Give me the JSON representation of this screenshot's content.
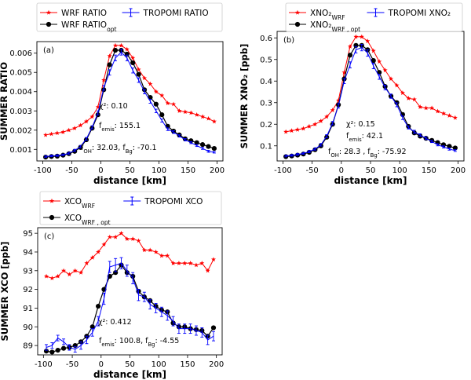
{
  "chart_data": [
    {
      "type": "line",
      "panel_label": "(a)",
      "xlabel": "distance [km]",
      "ylabel": "SUMMER RATIO",
      "xlim": [
        -110,
        210
      ],
      "ylim": [
        0.0004,
        0.0066
      ],
      "xticks": [
        -100,
        -50,
        0,
        50,
        100,
        150,
        200
      ],
      "yticks": [
        0.001,
        0.002,
        0.003,
        0.004,
        0.005,
        0.006
      ],
      "ytick_labels": [
        "0.001",
        "0.002",
        "0.003",
        "0.004",
        "0.005",
        "0.006"
      ],
      "legend": {
        "layout": "3-entry",
        "location": "above plot",
        "entries": [
          {
            "series": 0,
            "label": "WRF RATIO",
            "sub": ""
          },
          {
            "series": 1,
            "label": "WRF RATIO",
            "sub": "opt"
          },
          {
            "series": 2,
            "label": "TROPOMI RATIO",
            "sub": ""
          }
        ]
      },
      "annotations": [
        {
          "text": "χ²: 0.10",
          "pos": "chi"
        },
        {
          "text": "f_emis: 155.1",
          "pos": "femis"
        },
        {
          "text": "f_OH: 32.03, f_Bg: -70.1",
          "pos": "foh"
        }
      ],
      "x": [
        -95,
        -85,
        -75,
        -65,
        -55,
        -45,
        -35,
        -25,
        -15,
        -5,
        5,
        15,
        25,
        35,
        45,
        55,
        65,
        75,
        85,
        95,
        105,
        115,
        125,
        135,
        145,
        155,
        165,
        175,
        185,
        195
      ],
      "series": [
        {
          "name": "WRF RATIO",
          "color": "#ff0000",
          "marker": "star",
          "values": [
            0.00175,
            0.0018,
            0.00185,
            0.0019,
            0.002,
            0.0021,
            0.00225,
            0.00245,
            0.0027,
            0.0032,
            0.0046,
            0.00585,
            0.0064,
            0.0064,
            0.0062,
            0.00575,
            0.00515,
            0.0047,
            0.0044,
            0.004,
            0.0038,
            0.0034,
            0.00335,
            0.003,
            0.00295,
            0.0029,
            0.0028,
            0.0027,
            0.0026,
            0.00245
          ]
        },
        {
          "name": "WRF RATIO_opt",
          "color": "#000000",
          "marker": "circle",
          "values": [
            0.0006,
            0.00063,
            0.00065,
            0.0007,
            0.00078,
            0.0009,
            0.0011,
            0.0015,
            0.0021,
            0.0028,
            0.0041,
            0.0054,
            0.00615,
            0.00615,
            0.00595,
            0.0055,
            0.0049,
            0.0041,
            0.0037,
            0.00335,
            0.0028,
            0.0022,
            0.00195,
            0.00175,
            0.00155,
            0.00145,
            0.00135,
            0.00125,
            0.00115,
            0.00105
          ]
        },
        {
          "name": "TROPOMI RATIO",
          "color": "#0000ff",
          "marker": "none",
          "values": [
            0.00063,
            0.00066,
            0.00068,
            0.00072,
            0.0008,
            0.00095,
            0.00115,
            0.00155,
            0.00215,
            0.0029,
            0.0042,
            0.005,
            0.00575,
            0.00605,
            0.00575,
            0.0051,
            0.0046,
            0.004,
            0.0035,
            0.003,
            0.0025,
            0.00205,
            0.0019,
            0.0017,
            0.0015,
            0.00135,
            0.0012,
            0.00105,
            0.0009,
            0.00085
          ],
          "errors": [
            4e-05,
            4e-05,
            4e-05,
            4e-05,
            5e-05,
            5e-05,
            6e-05,
            7e-05,
            8e-05,
            0.0001,
            0.00012,
            0.00014,
            0.00015,
            0.00015,
            0.00015,
            0.00013,
            0.00012,
            0.00011,
            0.0001,
            9e-05,
            8e-05,
            7e-05,
            7e-05,
            6e-05,
            6e-05,
            5e-05,
            5e-05,
            5e-05,
            5e-05,
            4e-05
          ]
        }
      ]
    },
    {
      "type": "line",
      "panel_label": "(b)",
      "xlabel": "distance [km]",
      "ylabel": "SUMMER XNO₂ [ppb]",
      "xlim": [
        -110,
        210
      ],
      "ylim": [
        0.03,
        0.63
      ],
      "xticks": [
        -100,
        -50,
        0,
        50,
        100,
        150,
        200
      ],
      "yticks": [
        0.1,
        0.2,
        0.3,
        0.4,
        0.5,
        0.6
      ],
      "ytick_labels": [
        "0.1",
        "0.2",
        "0.3",
        "0.4",
        "0.5",
        "0.6"
      ],
      "legend": {
        "layout": "3-entry",
        "location": "above plot",
        "entries": [
          {
            "series": 0,
            "label": "XNO₂",
            "sub": "WRF"
          },
          {
            "series": 1,
            "label": "XNO₂",
            "sub": "WRF , opt"
          },
          {
            "series": 2,
            "label": "TROPOMI XNO₂",
            "sub": ""
          }
        ]
      },
      "annotations": [
        {
          "text": "χ²: 0.15",
          "pos": "chi"
        },
        {
          "text": "f_emis: 42.1",
          "pos": "femis"
        },
        {
          "text": "f_OH: 28.3 , f_Bg: -75.92",
          "pos": "foh"
        }
      ],
      "x": [
        -95,
        -85,
        -75,
        -65,
        -55,
        -45,
        -35,
        -25,
        -15,
        -5,
        5,
        15,
        25,
        35,
        45,
        55,
        65,
        75,
        85,
        95,
        105,
        115,
        125,
        135,
        145,
        155,
        165,
        175,
        185,
        195
      ],
      "series": [
        {
          "name": "XNO2 WRF",
          "color": "#ff0000",
          "marker": "star",
          "values": [
            0.165,
            0.17,
            0.175,
            0.18,
            0.19,
            0.2,
            0.215,
            0.235,
            0.265,
            0.31,
            0.44,
            0.56,
            0.605,
            0.605,
            0.585,
            0.54,
            0.49,
            0.45,
            0.41,
            0.38,
            0.345,
            0.32,
            0.315,
            0.28,
            0.275,
            0.275,
            0.26,
            0.25,
            0.24,
            0.23
          ]
        },
        {
          "name": "XNO2 WRF, opt",
          "color": "#000000",
          "marker": "circle",
          "values": [
            0.05,
            0.053,
            0.057,
            0.062,
            0.07,
            0.082,
            0.1,
            0.14,
            0.2,
            0.29,
            0.41,
            0.52,
            0.565,
            0.565,
            0.545,
            0.495,
            0.44,
            0.375,
            0.33,
            0.3,
            0.245,
            0.19,
            0.16,
            0.145,
            0.135,
            0.125,
            0.115,
            0.105,
            0.098,
            0.09
          ]
        },
        {
          "name": "TROPOMI XNO2",
          "color": "#0000ff",
          "marker": "none",
          "values": [
            0.053,
            0.056,
            0.06,
            0.065,
            0.073,
            0.085,
            0.105,
            0.145,
            0.205,
            0.285,
            0.4,
            0.475,
            0.545,
            0.555,
            0.53,
            0.47,
            0.42,
            0.37,
            0.33,
            0.29,
            0.23,
            0.185,
            0.165,
            0.15,
            0.135,
            0.12,
            0.105,
            0.095,
            0.085,
            0.078
          ],
          "errors": [
            0.004,
            0.004,
            0.004,
            0.004,
            0.005,
            0.005,
            0.006,
            0.007,
            0.008,
            0.01,
            0.012,
            0.014,
            0.015,
            0.015,
            0.015,
            0.013,
            0.012,
            0.011,
            0.01,
            0.009,
            0.008,
            0.007,
            0.007,
            0.006,
            0.006,
            0.005,
            0.005,
            0.005,
            0.005,
            0.004
          ]
        }
      ]
    },
    {
      "type": "line",
      "panel_label": "(c)",
      "xlabel": "distance [km]",
      "ylabel": "SUMMER XCO [ppb]",
      "xlim": [
        -110,
        210
      ],
      "ylim": [
        88.5,
        95.3
      ],
      "xticks": [
        -100,
        -50,
        0,
        50,
        100,
        150,
        200
      ],
      "yticks": [
        89,
        90,
        91,
        92,
        93,
        94,
        95
      ],
      "ytick_labels": [
        "89",
        "90",
        "91",
        "92",
        "93",
        "94",
        "95"
      ],
      "legend": {
        "layout": "3-entry",
        "location": "above plot",
        "entries": [
          {
            "series": 0,
            "label": "XCO",
            "sub": "WRF"
          },
          {
            "series": 1,
            "label": "XCO",
            "sub": "WRF , opt"
          },
          {
            "series": 2,
            "label": "TROPOMI XCO",
            "sub": ""
          }
        ]
      },
      "annotations": [
        {
          "text": "χ²: 0.412",
          "pos": "chi"
        },
        {
          "text": "f_emis: 100.8, f_Bg: -4.55",
          "pos": "femis"
        }
      ],
      "x": [
        -95,
        -85,
        -75,
        -65,
        -55,
        -45,
        -35,
        -25,
        -15,
        -5,
        5,
        15,
        25,
        35,
        45,
        55,
        65,
        75,
        85,
        95,
        105,
        115,
        125,
        135,
        145,
        155,
        165,
        175,
        185,
        195
      ],
      "series": [
        {
          "name": "XCO WRF",
          "color": "#ff0000",
          "marker": "star",
          "values": [
            92.7,
            92.6,
            92.7,
            93.0,
            92.8,
            93.0,
            92.9,
            93.4,
            93.7,
            94.0,
            94.4,
            94.8,
            94.8,
            95.0,
            94.7,
            94.7,
            94.6,
            94.1,
            94.1,
            94.0,
            93.8,
            93.8,
            93.4,
            93.4,
            93.4,
            93.4,
            93.3,
            93.4,
            93.0,
            93.6
          ]
        },
        {
          "name": "XCO WRF, opt",
          "color": "#000000",
          "marker": "circle",
          "values": [
            88.7,
            88.65,
            88.75,
            88.85,
            88.9,
            89.0,
            89.2,
            89.5,
            90.0,
            91.1,
            92.0,
            92.7,
            92.9,
            93.3,
            92.9,
            92.7,
            91.9,
            91.6,
            91.4,
            91.1,
            90.9,
            90.8,
            90.2,
            90.0,
            90.0,
            89.9,
            89.85,
            89.8,
            89.5,
            89.95
          ]
        },
        {
          "name": "TROPOMI XCO",
          "color": "#0000ff",
          "marker": "none",
          "values": [
            88.9,
            89.0,
            89.4,
            89.2,
            88.9,
            88.8,
            89.0,
            89.3,
            89.7,
            90.3,
            91.5,
            93.2,
            93.3,
            93.4,
            93.0,
            92.6,
            91.7,
            91.6,
            91.2,
            91.0,
            90.8,
            90.6,
            90.3,
            89.9,
            89.9,
            89.9,
            89.8,
            89.7,
            89.3,
            89.5
          ],
          "errors": [
            0.15,
            0.15,
            0.15,
            0.15,
            0.15,
            0.15,
            0.2,
            0.2,
            0.2,
            0.25,
            0.3,
            0.3,
            0.35,
            0.3,
            0.3,
            0.3,
            0.3,
            0.25,
            0.25,
            0.25,
            0.25,
            0.25,
            0.25,
            0.25,
            0.25,
            0.25,
            0.25,
            0.25,
            0.25,
            0.25
          ]
        }
      ]
    }
  ]
}
